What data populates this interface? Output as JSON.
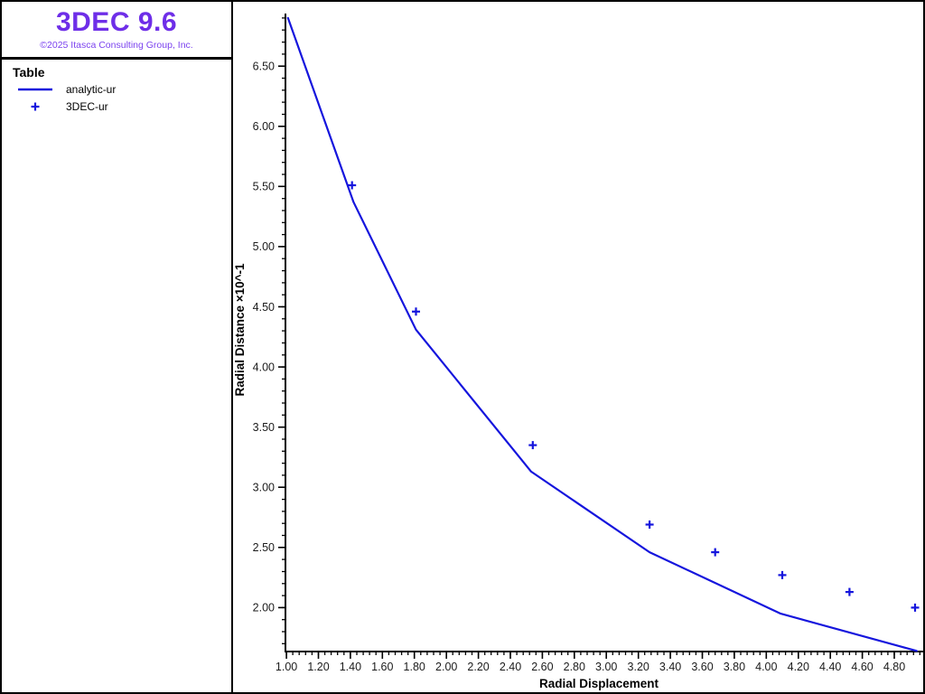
{
  "header": {
    "title": "3DEC 9.6",
    "title_color": "#6e2ee8",
    "copyright": "©2025 Itasca Consulting Group, Inc.",
    "copyright_color": "#7b42ef"
  },
  "legend": {
    "heading": "Table",
    "items": [
      {
        "label": "analytic-ur",
        "symbol": "line",
        "color": "#1515dd"
      },
      {
        "label": "3DEC-ur",
        "symbol": "plus",
        "color": "#1515dd"
      }
    ]
  },
  "chart_data": {
    "type": "line",
    "title": "",
    "grid": false,
    "legend_position": "left-panel",
    "axis_color": "#000000",
    "tick_label_color": "#1c1c1c",
    "x_axis": {
      "title": "Radial Displacement",
      "range": [
        0.994,
        4.975
      ],
      "tick_values": [
        1.0,
        1.2,
        1.4,
        1.6,
        1.8,
        2.0,
        2.2,
        2.4,
        2.6,
        2.8,
        3.0,
        3.2,
        3.4,
        3.6,
        3.8,
        4.0,
        4.2,
        4.4,
        4.6,
        4.8
      ],
      "tick_labels": [
        "1.00",
        "1.20",
        "1.40",
        "1.60",
        "1.80",
        "2.00",
        "2.20",
        "2.40",
        "2.60",
        "2.80",
        "3.00",
        "3.20",
        "3.40",
        "3.60",
        "3.80",
        "4.00",
        "4.20",
        "4.40",
        "4.60",
        "4.80"
      ],
      "minor_step": 0.04
    },
    "y_axis": {
      "title": "Radial Distance ×10^-1",
      "range": [
        1.635,
        6.937
      ],
      "tick_values": [
        2.0,
        2.5,
        3.0,
        3.5,
        4.0,
        4.5,
        5.0,
        5.5,
        6.0,
        6.5
      ],
      "tick_labels": [
        "2.00",
        "2.50",
        "3.00",
        "3.50",
        "4.00",
        "4.50",
        "5.00",
        "5.50",
        "6.00",
        "6.50"
      ],
      "minor_step": 0.1
    },
    "series": [
      {
        "name": "analytic-ur",
        "type": "line",
        "color": "#1515dd",
        "points": [
          [
            1.01,
            6.9
          ],
          [
            1.42,
            5.37
          ],
          [
            1.81,
            4.31
          ],
          [
            2.53,
            3.13
          ],
          [
            3.27,
            2.46
          ],
          [
            4.09,
            1.95
          ],
          [
            4.94,
            1.64
          ]
        ]
      },
      {
        "name": "3DEC-ur",
        "type": "scatter",
        "marker": "plus",
        "color": "#1515dd",
        "points": [
          [
            1.41,
            5.51
          ],
          [
            1.81,
            4.46
          ],
          [
            2.54,
            3.35
          ],
          [
            3.27,
            2.69
          ],
          [
            3.68,
            2.46
          ],
          [
            4.1,
            2.27
          ],
          [
            4.52,
            2.13
          ],
          [
            4.93,
            2.0
          ]
        ]
      }
    ]
  }
}
